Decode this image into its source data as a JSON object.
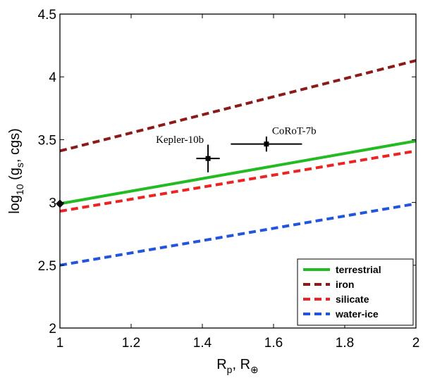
{
  "chart_data": {
    "type": "line",
    "title": "",
    "xlabel_main": "R",
    "xlabel_sub1": "p",
    "xlabel_sep": ", R",
    "xlabel_sub2": "⊕",
    "ylabel_main": "log",
    "ylabel_sub1": "10",
    "ylabel_mid": " (g",
    "ylabel_sub2": "s",
    "ylabel_end": ", cgs)",
    "xlim": [
      1,
      2
    ],
    "ylim": [
      2,
      4.5
    ],
    "x_ticks": [
      1,
      1.2,
      1.4,
      1.6,
      1.8,
      2
    ],
    "x_tick_labels": [
      "1",
      "1.2",
      "1.4",
      "1.6",
      "1.8",
      "2"
    ],
    "y_ticks": [
      2,
      2.5,
      3,
      3.5,
      4,
      4.5
    ],
    "y_tick_labels": [
      "2",
      "2.5",
      "3",
      "3.5",
      "4",
      "4.5"
    ],
    "grid": false,
    "legend_position": "bottom-right",
    "series": [
      {
        "name": "terrestrial",
        "color": "#22bb22",
        "dash": "solid",
        "x": [
          1,
          2
        ],
        "y": [
          2.99,
          3.49
        ]
      },
      {
        "name": "iron",
        "color": "#8b1a1a",
        "dash": "dashed",
        "x": [
          1,
          2
        ],
        "y": [
          3.41,
          4.13
        ]
      },
      {
        "name": "silicate",
        "color": "#ee2222",
        "dash": "dashed",
        "x": [
          1,
          2
        ],
        "y": [
          2.93,
          3.41
        ]
      },
      {
        "name": "water-ice",
        "color": "#2255dd",
        "dash": "dashed",
        "x": [
          1,
          2
        ],
        "y": [
          2.5,
          2.99
        ]
      }
    ],
    "points": [
      {
        "label": "Kepler-10b",
        "x": 1.416,
        "y": 3.35,
        "xerr": 0.033,
        "yerr": 0.11
      },
      {
        "label": "CoRoT-7b",
        "x": 1.58,
        "y": 3.465,
        "xerr": 0.1,
        "yerr": 0.06
      }
    ],
    "markers": [
      {
        "name": "start-marker",
        "x": 1,
        "y": 2.99
      }
    ]
  }
}
